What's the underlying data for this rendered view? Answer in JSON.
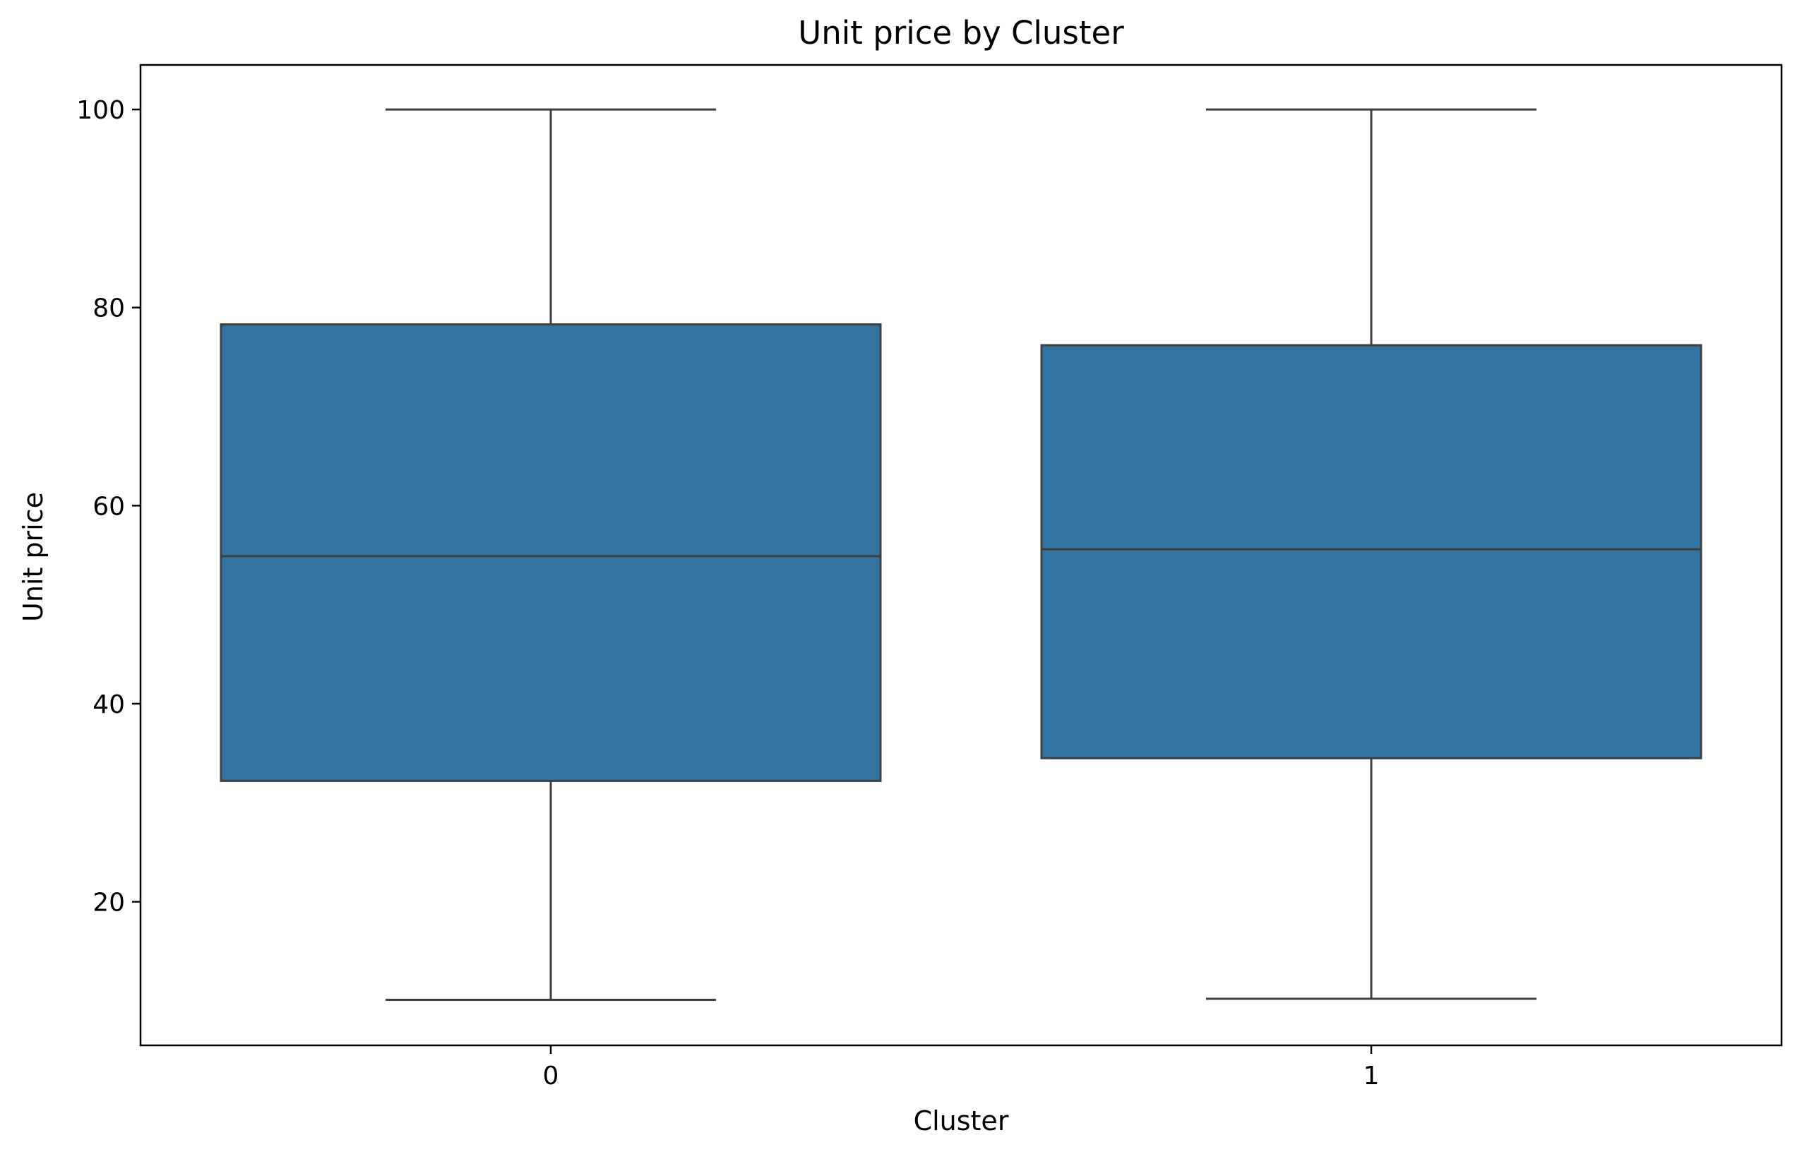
{
  "chart_data": {
    "type": "box",
    "title": "Unit price by Cluster",
    "xlabel": "Cluster",
    "ylabel": "Unit price",
    "categories": [
      "0",
      "1"
    ],
    "ylim": [
      5.5,
      104.5
    ],
    "yticks": [
      20,
      40,
      60,
      80,
      100
    ],
    "grid": false,
    "legend": "none",
    "box_color": "#3274a1",
    "line_color": "#3f3f3f",
    "boxes": [
      {
        "category": "0",
        "whisker_low": 10.1,
        "q1": 32.2,
        "median": 54.9,
        "q3": 78.3,
        "whisker_high": 100.0
      },
      {
        "category": "1",
        "whisker_low": 10.2,
        "q1": 34.5,
        "median": 55.6,
        "q3": 76.2,
        "whisker_high": 100.0
      }
    ]
  }
}
